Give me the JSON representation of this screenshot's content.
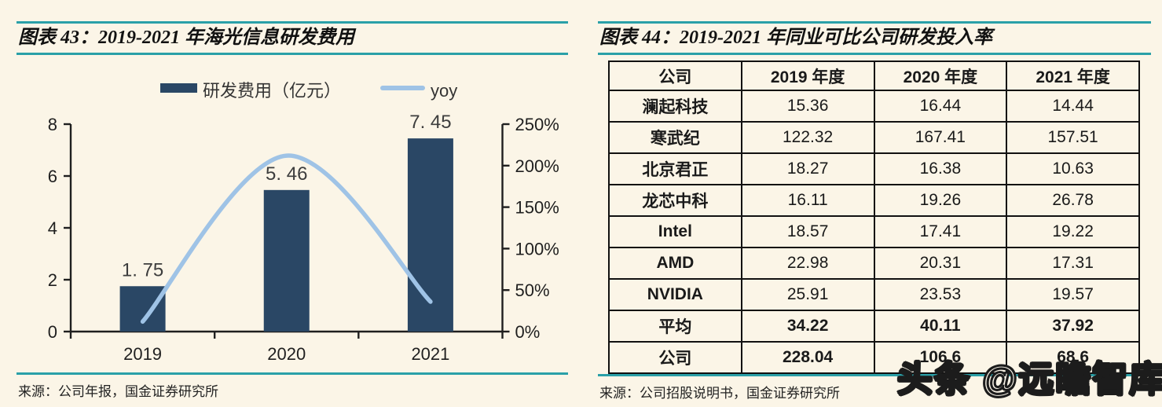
{
  "colors": {
    "background": "#FBF5E7",
    "teal_rule": "#2AA0A8",
    "bar_navy": "#2A4765",
    "line_blue": "#9FC3E6",
    "axis": "#1f1f1f",
    "table_border": "#111111"
  },
  "left_panel": {
    "title": "图表 43：2019-2021 年海光信息研发费用",
    "source": "来源：公司年报，国金证券研究所"
  },
  "chart_data": {
    "type": "bar+line",
    "categories": [
      "2019",
      "2020",
      "2021"
    ],
    "series": [
      {
        "name": "研发费用（亿元）",
        "type": "bar",
        "axis": "left",
        "color": "#2A4765",
        "values": [
          1.75,
          5.46,
          7.45
        ],
        "labels": [
          "1. 75",
          "5. 46",
          "7. 45"
        ]
      },
      {
        "name": "yoy",
        "type": "line",
        "axis": "right",
        "color": "#9FC3E6",
        "values_percent": [
          12,
          212,
          36
        ]
      }
    ],
    "left_axis": {
      "range": [
        0,
        8
      ],
      "ticks": [
        0,
        2,
        4,
        6,
        8
      ]
    },
    "right_axis": {
      "range_percent": [
        0,
        250
      ],
      "tick_values": [
        0,
        50,
        100,
        150,
        200,
        250
      ],
      "tick_labels": [
        "0%",
        "50%",
        "100%",
        "150%",
        "200%",
        "250%"
      ]
    },
    "grid": false,
    "legend_position": "top"
  },
  "right_panel": {
    "title": "图表 44：2019-2021 年同业可比公司研发投入率",
    "source": "来源：公司招股说明书，国金证券研究所",
    "table": {
      "headers": [
        "公司",
        "2019 年度",
        "2020 年度",
        "2021 年度"
      ],
      "rows": [
        {
          "company": "澜起科技",
          "values": [
            "15.36",
            "16.44",
            "14.44"
          ],
          "bold": false
        },
        {
          "company": "寒武纪",
          "values": [
            "122.32",
            "167.41",
            "157.51"
          ],
          "bold": false
        },
        {
          "company": "北京君正",
          "values": [
            "18.27",
            "16.38",
            "10.63"
          ],
          "bold": false
        },
        {
          "company": "龙芯中科",
          "values": [
            "16.11",
            "19.26",
            "26.78"
          ],
          "bold": false
        },
        {
          "company": "Intel",
          "values": [
            "18.57",
            "17.41",
            "19.22"
          ],
          "bold": false
        },
        {
          "company": "AMD",
          "values": [
            "22.98",
            "20.31",
            "17.31"
          ],
          "bold": false
        },
        {
          "company": "NVIDIA",
          "values": [
            "25.91",
            "23.53",
            "19.57"
          ],
          "bold": false
        },
        {
          "company": "平均",
          "values": [
            "34.22",
            "40.11",
            "37.92"
          ],
          "bold": true
        },
        {
          "company": "公司",
          "values": [
            "228.04",
            "106.6",
            "68.6"
          ],
          "bold": true
        }
      ]
    }
  },
  "watermark": "头条 @远瞻智库"
}
